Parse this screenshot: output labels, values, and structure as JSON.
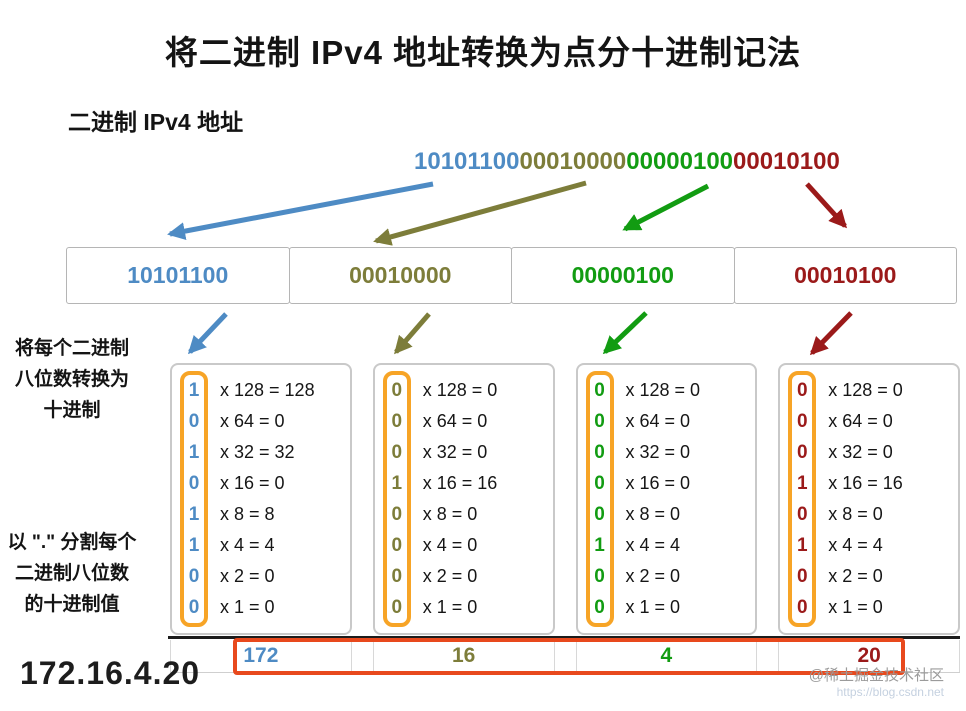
{
  "title": "将二进制 IPv4 地址转换为点分十进制记法",
  "section_label": "二进制 IPv4 地址",
  "notes": {
    "convert": "将每个二进制\n八位数转换为\n十进制",
    "split": "以 \".\" 分割每个\n二进制八位数\n的十进制值"
  },
  "multipliers": [
    "128",
    "64",
    "32",
    "16",
    "8",
    "4",
    "2",
    "1"
  ],
  "octets": [
    {
      "binary": "10101100",
      "bits": [
        "1",
        "0",
        "1",
        "0",
        "1",
        "1",
        "0",
        "0"
      ],
      "products": [
        "128",
        "0",
        "32",
        "0",
        "8",
        "4",
        "0",
        "0"
      ],
      "decimal": "172",
      "color_key": "octet1"
    },
    {
      "binary": "00010000",
      "bits": [
        "0",
        "0",
        "0",
        "1",
        "0",
        "0",
        "0",
        "0"
      ],
      "products": [
        "0",
        "0",
        "0",
        "16",
        "0",
        "0",
        "0",
        "0"
      ],
      "decimal": "16",
      "color_key": "octet2"
    },
    {
      "binary": "00000100",
      "bits": [
        "0",
        "0",
        "0",
        "0",
        "0",
        "1",
        "0",
        "0"
      ],
      "products": [
        "0",
        "0",
        "0",
        "0",
        "0",
        "4",
        "0",
        "0"
      ],
      "decimal": "4",
      "color_key": "octet3"
    },
    {
      "binary": "00010100",
      "bits": [
        "0",
        "0",
        "0",
        "1",
        "0",
        "1",
        "0",
        "0"
      ],
      "products": [
        "0",
        "0",
        "0",
        "16",
        "0",
        "4",
        "0",
        "0"
      ],
      "decimal": "20",
      "color_key": "octet4"
    }
  ],
  "result": "172.16.4.20",
  "watermark": {
    "line1": "@稀土掘金技术社区",
    "line2": "https://blog.csdn.net"
  },
  "colors": {
    "octet1": "#4e8bc4",
    "octet2": "#7d7d3a",
    "octet3": "#129c12",
    "octet4": "#9b1a1a",
    "bit_box_border": "#f7a426",
    "result_box_border": "#e8491d"
  }
}
